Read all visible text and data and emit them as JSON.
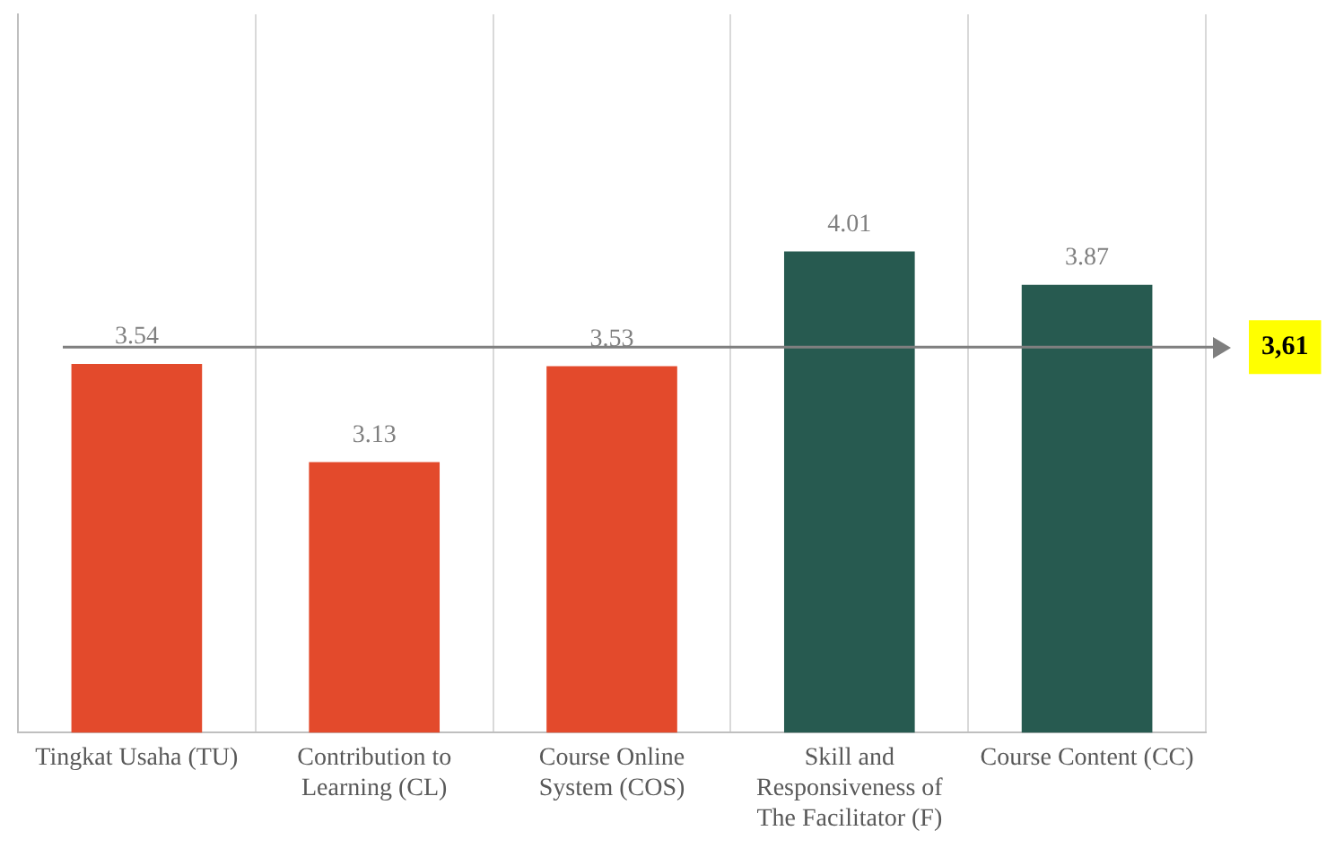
{
  "chart_data": {
    "type": "bar",
    "categories": [
      "Tingkat Usaha (TU)",
      "Contribution to Learning (CL)",
      "Course Online System (COS)",
      "Skill and Responsiveness of The Facilitator (F)",
      "Course Content (CC)"
    ],
    "values": [
      3.54,
      3.13,
      3.53,
      4.01,
      3.87
    ],
    "colors": [
      "#e34a2c",
      "#e34a2c",
      "#e34a2c",
      "#275a50",
      "#275a50"
    ],
    "ylim": [
      2,
      5
    ],
    "tick_labels": "x",
    "grid": "x",
    "data_labels": true,
    "ref_lines": [
      {
        "axis": "y",
        "value": 3.61,
        "label": "3,61",
        "color": "#7f7f7f"
      }
    ]
  }
}
